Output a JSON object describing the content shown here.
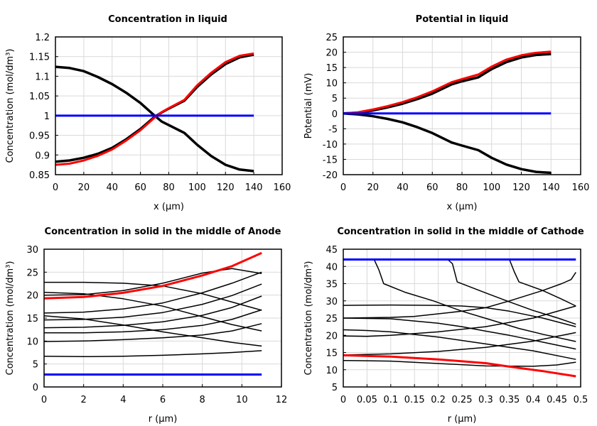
{
  "chart_data": [
    {
      "type": "line",
      "title": "Concentration in liquid",
      "xlabel": "x (µm)",
      "ylabel": "Concentration (mol/dm³)",
      "xlim": [
        0,
        160
      ],
      "ylim": [
        0.85,
        1.2
      ],
      "xticks": [
        0,
        20,
        40,
        60,
        80,
        100,
        120,
        140,
        160
      ],
      "yticks": [
        0.85,
        0.9,
        0.95,
        1,
        1.05,
        1.1,
        1.15,
        1.2
      ],
      "ytick_labels": [
        "0.85",
        "0.9",
        "0.95",
        "1",
        "1.05",
        "1.1",
        "1.15",
        "1.2"
      ],
      "grid": true,
      "x": [
        0,
        10,
        20,
        30,
        40,
        50,
        60,
        70,
        75,
        80,
        91,
        100,
        110,
        120,
        130,
        140
      ],
      "series": [
        {
          "color": "#000000",
          "width": 3.5,
          "values": [
            1.124,
            1.121,
            1.113,
            1.098,
            1.08,
            1.058,
            1.032,
            1.0,
            0.985,
            0.976,
            0.956,
            0.926,
            0.897,
            0.875,
            0.863,
            0.859
          ]
        },
        {
          "color": "#000000",
          "width": 3.5,
          "values": [
            0.883,
            0.886,
            0.893,
            0.903,
            0.918,
            0.94,
            0.966,
            0.997,
            1.008,
            1.018,
            1.038,
            1.073,
            1.105,
            1.131,
            1.148,
            1.155
          ]
        },
        {
          "color": "#ff0000",
          "width": 3,
          "values": [
            0.875,
            0.878,
            0.886,
            0.898,
            0.914,
            0.937,
            0.963,
            0.995,
            1.009,
            1.019,
            1.04,
            1.077,
            1.109,
            1.136,
            1.152,
            1.158
          ]
        },
        {
          "color": "#0000ff",
          "width": 3,
          "values": [
            1,
            1,
            1,
            1,
            1,
            1,
            1,
            1,
            1,
            1,
            1,
            1,
            1,
            1,
            1,
            1
          ]
        }
      ]
    },
    {
      "type": "line",
      "title": "Potential in liquid",
      "xlabel": "x (µm)",
      "ylabel": "Potential (mV)",
      "xlim": [
        0,
        160
      ],
      "ylim": [
        -20,
        25
      ],
      "xticks": [
        0,
        20,
        40,
        60,
        80,
        100,
        120,
        140,
        160
      ],
      "yticks": [
        -20,
        -15,
        -10,
        -5,
        0,
        5,
        10,
        15,
        20,
        25
      ],
      "grid": true,
      "x": [
        0,
        10,
        20,
        30,
        40,
        50,
        60,
        73,
        80,
        91,
        100,
        110,
        120,
        130,
        140
      ],
      "series": [
        {
          "color": "#000000",
          "width": 3.5,
          "values": [
            0,
            0.2,
            1,
            2,
            3.2,
            4.7,
            6.5,
            9.5,
            10.5,
            11.8,
            14.5,
            16.8,
            18.3,
            19.1,
            19.4
          ]
        },
        {
          "color": "#ff0000",
          "width": 3,
          "values": [
            0,
            0.4,
            1.3,
            2.4,
            3.7,
            5.3,
            7.2,
            10.2,
            11.2,
            12.7,
            15.3,
            17.6,
            19.0,
            19.8,
            20.2
          ]
        },
        {
          "color": "#000000",
          "width": 3.5,
          "values": [
            0,
            -0.3,
            -0.9,
            -1.8,
            -2.9,
            -4.5,
            -6.4,
            -9.5,
            -10.5,
            -12,
            -14.5,
            -16.7,
            -18.2,
            -19.1,
            -19.4
          ]
        },
        {
          "color": "#0000ff",
          "width": 3,
          "values": [
            0,
            0,
            0,
            0,
            0,
            0,
            0,
            0,
            0,
            0,
            0,
            0,
            0,
            0,
            0
          ]
        }
      ]
    },
    {
      "type": "line",
      "title": "Concentration in solid in the middle of Anode",
      "xlabel": "r (µm)",
      "ylabel": "Concentration (mol/dm³)",
      "xlim": [
        0,
        12
      ],
      "ylim": [
        0,
        30
      ],
      "xticks": [
        0,
        2,
        4,
        6,
        8,
        10,
        12
      ],
      "yticks": [
        0,
        5,
        10,
        15,
        20,
        25,
        30
      ],
      "grid": true,
      "x": [
        0,
        2,
        4,
        6,
        8,
        9.5,
        11
      ],
      "series": [
        {
          "color": "#000000",
          "width": 1.5,
          "values": [
            22.8,
            22.8,
            22.6,
            22,
            20.3,
            18.5,
            16.7
          ]
        },
        {
          "color": "#000000",
          "width": 1.5,
          "values": [
            20.6,
            20.3,
            19.2,
            17.6,
            15.3,
            13.6,
            12.2
          ]
        },
        {
          "color": "#000000",
          "width": 1.5,
          "values": [
            15.5,
            14.8,
            13.5,
            12,
            10.7,
            9.7,
            8.9
          ]
        },
        {
          "color": "#000000",
          "width": 1.5,
          "values": [
            20,
            20.1,
            21,
            22.6,
            24.8,
            25.8,
            24.7
          ]
        },
        {
          "color": "#000000",
          "width": 1.5,
          "values": [
            16.1,
            16.3,
            17,
            18.3,
            20.5,
            22.6,
            25
          ]
        },
        {
          "color": "#000000",
          "width": 1.5,
          "values": [
            14.6,
            14.7,
            15.2,
            16.2,
            18,
            19.9,
            22.4
          ]
        },
        {
          "color": "#000000",
          "width": 1.5,
          "values": [
            12.9,
            13,
            13.4,
            14.2,
            15.6,
            17.3,
            19.8
          ]
        },
        {
          "color": "#000000",
          "width": 1.5,
          "values": [
            11.8,
            11.8,
            12,
            12.5,
            13.4,
            14.7,
            16.8
          ]
        },
        {
          "color": "#000000",
          "width": 1.5,
          "values": [
            9.9,
            10,
            10.3,
            10.7,
            11.3,
            12.2,
            13.8
          ]
        },
        {
          "color": "#000000",
          "width": 1.5,
          "values": [
            6.7,
            6.6,
            6.7,
            6.9,
            7.2,
            7.5,
            7.9
          ]
        },
        {
          "color": "#ff0000",
          "width": 3,
          "values": [
            19.3,
            19.6,
            20.5,
            22,
            24.3,
            26.3,
            29.2
          ]
        },
        {
          "color": "#0000ff",
          "width": 3,
          "values": [
            2.7,
            2.7,
            2.7,
            2.7,
            2.7,
            2.7,
            2.7
          ]
        }
      ]
    },
    {
      "type": "line",
      "title": "Concentration in solid in the middle of Cathode",
      "xlabel": "r (µm)",
      "ylabel": "Concentration (mol/dm³)",
      "xlim": [
        0,
        0.5
      ],
      "ylim": [
        5,
        45
      ],
      "xticks": [
        0,
        0.05,
        0.1,
        0.15,
        0.2,
        0.25,
        0.3,
        0.35,
        0.4,
        0.45,
        0.5
      ],
      "yticks": [
        5,
        10,
        15,
        20,
        25,
        30,
        35,
        40,
        45
      ],
      "grid": true,
      "series": [
        {
          "color": "#000000",
          "width": 1.5,
          "x": [
            0,
            0.065,
            0.075,
            0.085,
            0.13,
            0.19,
            0.25,
            0.31,
            0.37,
            0.42,
            0.49
          ],
          "values": [
            42,
            42,
            39,
            35,
            32.5,
            30,
            27,
            24.5,
            22,
            20.3,
            18.2
          ]
        },
        {
          "color": "#000000",
          "width": 1.5,
          "x": [
            0,
            0.22,
            0.23,
            0.24,
            0.3,
            0.35,
            0.4,
            0.45,
            0.49
          ],
          "values": [
            42,
            42,
            40.8,
            35.5,
            32.3,
            29.7,
            27.2,
            25.1,
            23.2
          ]
        },
        {
          "color": "#000000",
          "width": 1.5,
          "x": [
            0,
            0.35,
            0.36,
            0.37,
            0.42,
            0.46,
            0.49
          ],
          "values": [
            42,
            42,
            38.5,
            35.5,
            33,
            30.5,
            28.5
          ]
        },
        {
          "color": "#000000",
          "width": 1.5,
          "x": [
            0,
            0.1,
            0.2,
            0.25,
            0.3,
            0.35,
            0.42,
            0.49
          ],
          "values": [
            28.7,
            28.8,
            28.7,
            28.5,
            28,
            27,
            25,
            22.5
          ]
        },
        {
          "color": "#000000",
          "width": 1.5,
          "x": [
            0,
            0.1,
            0.2,
            0.25,
            0.3,
            0.35,
            0.42,
            0.49
          ],
          "values": [
            25,
            24.8,
            23.5,
            22.5,
            21.2,
            20,
            18,
            16
          ]
        },
        {
          "color": "#000000",
          "width": 1.5,
          "x": [
            0,
            0.1,
            0.15,
            0.25,
            0.3,
            0.35,
            0.42,
            0.46,
            0.48,
            0.49
          ],
          "values": [
            25,
            25.2,
            25.5,
            27,
            28,
            30,
            33,
            35,
            36.2,
            38.3
          ]
        },
        {
          "color": "#000000",
          "width": 1.5,
          "x": [
            0,
            0.05,
            0.1,
            0.2,
            0.3,
            0.4,
            0.49
          ],
          "values": [
            19.8,
            19.7,
            20,
            21,
            22.5,
            25,
            28.5
          ]
        },
        {
          "color": "#000000",
          "width": 1.5,
          "x": [
            0,
            0.05,
            0.1,
            0.2,
            0.3,
            0.4,
            0.49
          ],
          "values": [
            21.6,
            21.4,
            21,
            19.5,
            17.5,
            15.5,
            13
          ]
        },
        {
          "color": "#000000",
          "width": 1.5,
          "x": [
            0,
            0.1,
            0.2,
            0.3,
            0.4,
            0.49
          ],
          "values": [
            14.3,
            14.6,
            15.3,
            16.5,
            18.3,
            20.8
          ]
        },
        {
          "color": "#000000",
          "width": 1.5,
          "x": [
            0,
            0.1,
            0.2,
            0.3,
            0.4,
            0.45,
            0.49
          ],
          "values": [
            12.7,
            12.5,
            11.8,
            11.1,
            11,
            11.4,
            12.2
          ]
        },
        {
          "color": "#ff0000",
          "width": 3,
          "x": [
            0,
            0.1,
            0.2,
            0.3,
            0.35,
            0.42,
            0.49
          ],
          "values": [
            14.2,
            13.8,
            13,
            11.9,
            10.9,
            9.6,
            8.1
          ]
        },
        {
          "color": "#0000ff",
          "width": 3,
          "x": [
            0,
            0.49
          ],
          "values": [
            42,
            42
          ]
        }
      ]
    }
  ]
}
